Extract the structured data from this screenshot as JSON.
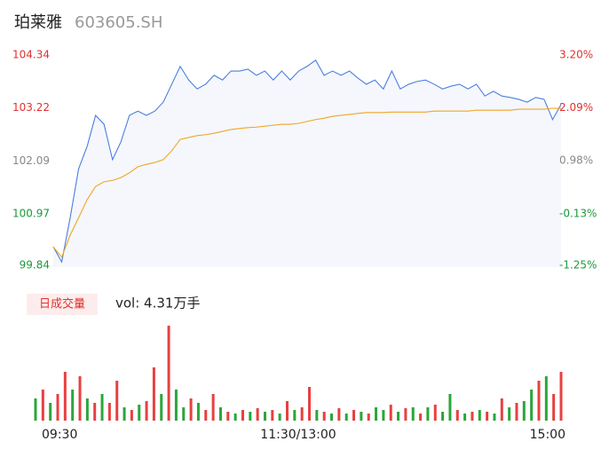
{
  "header": {
    "name": "珀莱雅",
    "code": "603605.SH"
  },
  "chart_data": [
    {
      "type": "line",
      "x": [
        0,
        4,
        8,
        12,
        16,
        20,
        24,
        28,
        32,
        36,
        40,
        44,
        48,
        52,
        56,
        60,
        64,
        68,
        72,
        76,
        80,
        84,
        88,
        92,
        96,
        100,
        104,
        108,
        112,
        116,
        120,
        124,
        128,
        132,
        136,
        140,
        144,
        148,
        152,
        156,
        160,
        164,
        168,
        172,
        176,
        180,
        184,
        188,
        192,
        196,
        200,
        204,
        208,
        212,
        216,
        220,
        224,
        228,
        232,
        236,
        240
      ],
      "series": [
        {
          "name": "price",
          "color": "#4a7fe0",
          "values": [
            100.27,
            99.95,
            100.89,
            101.93,
            102.4,
            103.06,
            102.87,
            102.12,
            102.5,
            103.06,
            103.15,
            103.06,
            103.15,
            103.34,
            103.72,
            104.1,
            103.81,
            103.62,
            103.72,
            103.91,
            103.81,
            104.0,
            104.0,
            104.04,
            103.91,
            104.0,
            103.81,
            104.0,
            103.81,
            104.0,
            104.1,
            104.23,
            103.91,
            104.0,
            103.91,
            104.0,
            103.85,
            103.72,
            103.81,
            103.62,
            104.0,
            103.62,
            103.72,
            103.78,
            103.81,
            103.72,
            103.62,
            103.68,
            103.72,
            103.62,
            103.72,
            103.47,
            103.57,
            103.47,
            103.44,
            103.4,
            103.34,
            103.44,
            103.4,
            102.97,
            103.29
          ]
        },
        {
          "name": "average",
          "color": "#f0a623",
          "values": [
            100.27,
            100.05,
            100.52,
            100.89,
            101.27,
            101.55,
            101.65,
            101.68,
            101.74,
            101.84,
            101.97,
            102.02,
            102.06,
            102.12,
            102.31,
            102.55,
            102.59,
            102.63,
            102.65,
            102.68,
            102.72,
            102.76,
            102.78,
            102.8,
            102.81,
            102.83,
            102.85,
            102.87,
            102.87,
            102.89,
            102.93,
            102.97,
            103.0,
            103.04,
            103.06,
            103.08,
            103.1,
            103.12,
            103.12,
            103.12,
            103.13,
            103.13,
            103.13,
            103.13,
            103.13,
            103.15,
            103.15,
            103.15,
            103.15,
            103.15,
            103.17,
            103.17,
            103.17,
            103.17,
            103.17,
            103.19,
            103.19,
            103.19,
            103.19,
            103.21,
            103.21
          ]
        }
      ],
      "xlim": [
        0,
        240
      ],
      "xticks": [
        {
          "value": 0,
          "label": "09:30"
        },
        {
          "value": 120,
          "label": "11:30/13:00"
        },
        {
          "value": 240,
          "label": "15:00"
        }
      ],
      "ylim": [
        99.84,
        104.34
      ],
      "yticks": [
        104.34,
        103.22,
        102.09,
        100.97,
        99.84
      ],
      "y2lim": [
        -1.25,
        3.2
      ],
      "y2ticks": [
        {
          "value": 3.2,
          "label": "3.20%"
        },
        {
          "value": 2.09,
          "label": "2.09%"
        },
        {
          "value": 0.98,
          "label": "0.98%"
        },
        {
          "value": -0.13,
          "label": "-0.13%"
        },
        {
          "value": -1.25,
          "label": "-1.25%"
        }
      ],
      "up_color": "#e03030",
      "down_color": "#1a9a3a",
      "flat_color": "#888888",
      "area_color": "#f5f7fc"
    },
    {
      "type": "volume",
      "title": "日成交量",
      "subtitle": "vol: 4.31万手",
      "values": [
        250,
        350,
        200,
        300,
        550,
        350,
        500,
        250,
        200,
        300,
        200,
        450,
        150,
        120,
        180,
        220,
        600,
        300,
        1070,
        350,
        150,
        250,
        200,
        120,
        300,
        150,
        100,
        80,
        120,
        100,
        140,
        100,
        120,
        80,
        220,
        120,
        150,
        380,
        120,
        100,
        80,
        140,
        80,
        120,
        100,
        80,
        150,
        120,
        180,
        100,
        140,
        150,
        80,
        150,
        180,
        100,
        300,
        120,
        80,
        100,
        120,
        100,
        80,
        250,
        150,
        200,
        220,
        350,
        450,
        500,
        300,
        550
      ],
      "colors": [
        "#2aa63a",
        "#e84040",
        "#2aa63a",
        "#e84040",
        "#e84040",
        "#2aa63a",
        "#e84040",
        "#2aa63a",
        "#e84040",
        "#2aa63a",
        "#e84040",
        "#e84040",
        "#2aa63a",
        "#e84040",
        "#2aa63a",
        "#e84040",
        "#e84040",
        "#2aa63a",
        "#e84040",
        "#2aa63a",
        "#2aa63a",
        "#e84040",
        "#2aa63a",
        "#e84040",
        "#e84040",
        "#2aa63a",
        "#e84040",
        "#2aa63a",
        "#e84040",
        "#2aa63a",
        "#e84040",
        "#2aa63a",
        "#e84040",
        "#2aa63a",
        "#e84040",
        "#2aa63a",
        "#e84040",
        "#e84040",
        "#2aa63a",
        "#e84040",
        "#2aa63a",
        "#e84040",
        "#2aa63a",
        "#e84040",
        "#2aa63a",
        "#e84040",
        "#2aa63a",
        "#2aa63a",
        "#e84040",
        "#2aa63a",
        "#e84040",
        "#2aa63a",
        "#e84040",
        "#2aa63a",
        "#e84040",
        "#2aa63a",
        "#2aa63a",
        "#e84040",
        "#2aa63a",
        "#e84040",
        "#2aa63a",
        "#e84040",
        "#2aa63a",
        "#e84040",
        "#2aa63a",
        "#e84040",
        "#2aa63a",
        "#2aa63a",
        "#e84040",
        "#2aa63a",
        "#e84040",
        "#e84040"
      ]
    }
  ]
}
